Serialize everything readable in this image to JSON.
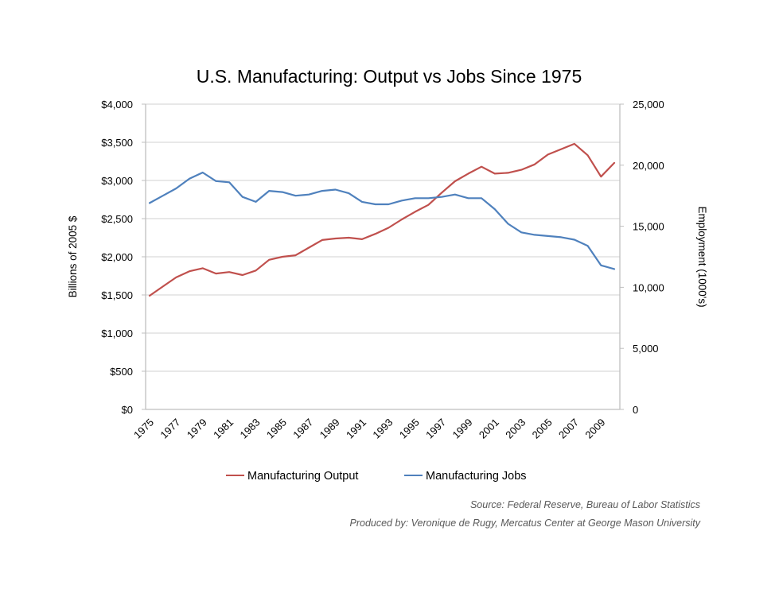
{
  "chart_data": {
    "type": "line",
    "title": "U.S. Manufacturing: Output vs Jobs Since 1975",
    "xlabel": "",
    "ylabel": "Billions of 2005 $",
    "y2label": "Employment (1000's)",
    "ylim": [
      0,
      4000
    ],
    "y2lim": [
      0,
      25000
    ],
    "grid": true,
    "legend_position": "bottom",
    "x": [
      1975,
      1976,
      1977,
      1978,
      1979,
      1980,
      1981,
      1982,
      1983,
      1984,
      1985,
      1986,
      1987,
      1988,
      1989,
      1990,
      1991,
      1992,
      1993,
      1994,
      1995,
      1996,
      1997,
      1998,
      1999,
      2000,
      2001,
      2002,
      2003,
      2004,
      2005,
      2006,
      2007,
      2008,
      2009,
      2010
    ],
    "x_tick_labels": [
      "1975",
      "1977",
      "1979",
      "1981",
      "1983",
      "1985",
      "1987",
      "1989",
      "1991",
      "1993",
      "1995",
      "1997",
      "1999",
      "2001",
      "2003",
      "2005",
      "2007",
      "2009"
    ],
    "y_tick_labels": [
      "$0",
      "$500",
      "$1,000",
      "$1,500",
      "$2,000",
      "$2,500",
      "$3,000",
      "$3,500",
      "$4,000"
    ],
    "y_tick_values": [
      0,
      500,
      1000,
      1500,
      2000,
      2500,
      3000,
      3500,
      4000
    ],
    "y2_tick_labels": [
      "0",
      "5,000",
      "10,000",
      "15,000",
      "20,000",
      "25,000"
    ],
    "y2_tick_values": [
      0,
      5000,
      10000,
      15000,
      20000,
      25000
    ],
    "series": [
      {
        "name": "Manufacturing Output",
        "axis": "left",
        "color": "#C0504D",
        "values": [
          1490,
          1610,
          1730,
          1810,
          1850,
          1780,
          1800,
          1760,
          1820,
          1960,
          2000,
          2020,
          2120,
          2220,
          2240,
          2250,
          2230,
          2300,
          2380,
          2490,
          2590,
          2680,
          2840,
          2990,
          3090,
          3180,
          3090,
          3100,
          3140,
          3210,
          3340,
          3410,
          3480,
          3330,
          3050,
          3230
        ]
      },
      {
        "name": "Manufacturing Jobs",
        "axis": "right",
        "color": "#4F81BD",
        "values": [
          16900,
          17500,
          18100,
          18900,
          19400,
          18700,
          18600,
          17400,
          17000,
          17900,
          17800,
          17500,
          17600,
          17900,
          18000,
          17700,
          17000,
          16800,
          16800,
          17100,
          17300,
          17300,
          17400,
          17600,
          17300,
          17300,
          16400,
          15200,
          14500,
          14300,
          14200,
          14100,
          13900,
          13400,
          11800,
          11500
        ]
      }
    ],
    "annotations": [
      "Source: Federal Reserve, Bureau of Labor Statistics",
      "Produced by: Veronique de Rugy, Mercatus Center at George Mason University"
    ]
  }
}
